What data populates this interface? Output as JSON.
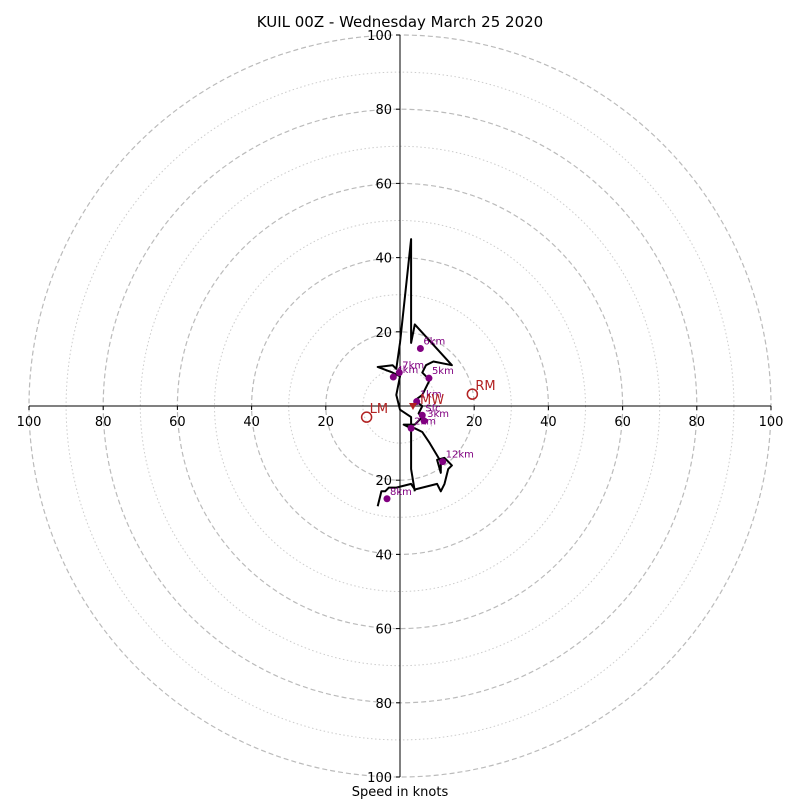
{
  "chart_data": {
    "type": "hodograph",
    "title": "KUIL 00Z - Wednesday March 25 2020",
    "xlabel": "Speed in knots",
    "max_speed": 100,
    "rings": [
      10,
      20,
      30,
      40,
      50,
      60,
      70,
      80,
      90,
      100
    ],
    "tick_labels": [
      "20",
      "40",
      "60",
      "80",
      "100"
    ],
    "colors": {
      "hodo_line": "#000000",
      "markers": "#800080",
      "storm_motion": "#b22222",
      "ring_major": "#bbbbbb",
      "ring_minor": "#cccccc"
    },
    "trace": [
      [
        -6,
        -27
      ],
      [
        -5,
        -23
      ],
      [
        -4,
        -23
      ],
      [
        -3,
        -22
      ],
      [
        -1,
        -22
      ],
      [
        3,
        -21
      ],
      [
        4,
        -22.5
      ],
      [
        10,
        -21
      ],
      [
        11,
        -23
      ],
      [
        12,
        -21
      ],
      [
        13,
        -17
      ],
      [
        14,
        -16
      ],
      [
        13,
        -15
      ],
      [
        12,
        -14
      ],
      [
        10,
        -14.5
      ],
      [
        11,
        -18
      ],
      [
        11,
        -15
      ],
      [
        8,
        -10
      ],
      [
        6,
        -7
      ],
      [
        4,
        -6
      ],
      [
        3,
        -6
      ],
      [
        1,
        -5
      ],
      [
        4,
        -5
      ],
      [
        6,
        -3
      ],
      [
        5,
        -2
      ],
      [
        6,
        0
      ],
      [
        4,
        1.5
      ],
      [
        6,
        3
      ],
      [
        7,
        5
      ],
      [
        8,
        7
      ],
      [
        7,
        8
      ],
      [
        6,
        9
      ],
      [
        7,
        11
      ],
      [
        9,
        12
      ],
      [
        14,
        11
      ],
      [
        4,
        22
      ],
      [
        3,
        17
      ],
      [
        3,
        45
      ],
      [
        0,
        17
      ],
      [
        -1,
        10
      ],
      [
        -2,
        11
      ],
      [
        -6,
        10.5
      ],
      [
        -2,
        9
      ],
      [
        0,
        8
      ],
      [
        -1,
        3
      ],
      [
        0,
        -1
      ],
      [
        3,
        -3
      ],
      [
        3,
        -6
      ],
      [
        3,
        -17
      ],
      [
        4,
        -23
      ]
    ],
    "height_markers": [
      {
        "label": "6km",
        "u": 5.5,
        "v": 15.5
      },
      {
        "label": "5km",
        "u": 7.8,
        "v": 7.5
      },
      {
        "label": "7km",
        "u": -0.2,
        "v": 9
      },
      {
        "label": "4km",
        "u": -1.8,
        "v": 7.8
      },
      {
        "label": "1km",
        "u": 4.5,
        "v": 1.2
      },
      {
        "label": "Sfc",
        "u": 6,
        "v": -2.5
      },
      {
        "label": "3km",
        "u": 6.5,
        "v": -4
      },
      {
        "label": "2km",
        "u": 3,
        "v": -6
      },
      {
        "label": "12km",
        "u": 11.5,
        "v": -15
      },
      {
        "label": "8km",
        "u": -3.5,
        "v": -25
      }
    ],
    "storm_motions": [
      {
        "label": "RM",
        "u": 19.5,
        "v": 3.2,
        "style": "open-circle"
      },
      {
        "label": "LM",
        "u": -9,
        "v": -3,
        "style": "open-circle"
      },
      {
        "label": "MW",
        "u": 3.5,
        "v": 0,
        "style": "filled-triangle"
      }
    ]
  }
}
